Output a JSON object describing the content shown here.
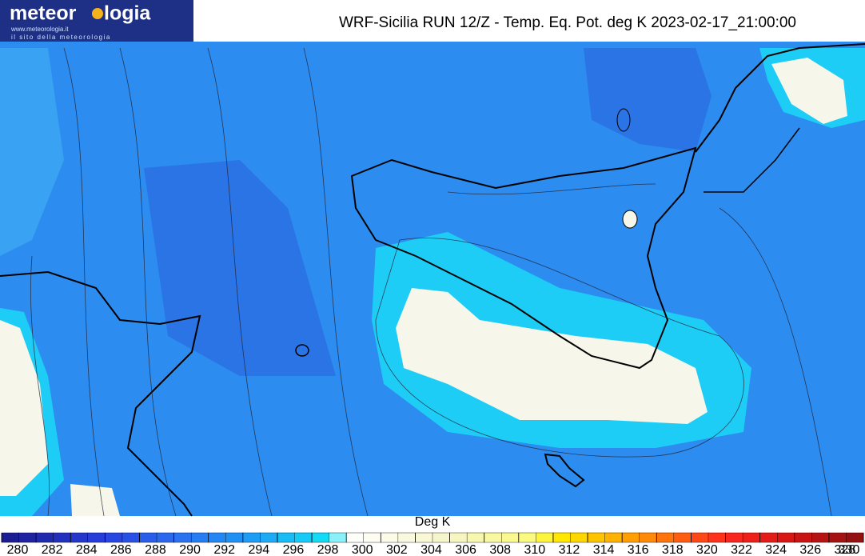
{
  "header": {
    "logo_left": "meteor",
    "logo_right": "logia",
    "logo_url": "www.meteorologia.it",
    "logo_tagline": "il sito della meteorologia",
    "title": "WRF-Sicilia RUN 12/Z - Temp. Eq. Pot. deg K 2023-02-17_21:00:00"
  },
  "colorbar": {
    "label": "Deg K",
    "ticks": [
      280,
      282,
      284,
      286,
      288,
      290,
      292,
      294,
      296,
      298,
      300,
      302,
      304,
      306,
      308,
      310,
      312,
      314,
      316,
      318,
      320,
      322,
      324,
      326,
      328,
      330
    ]
  }
}
